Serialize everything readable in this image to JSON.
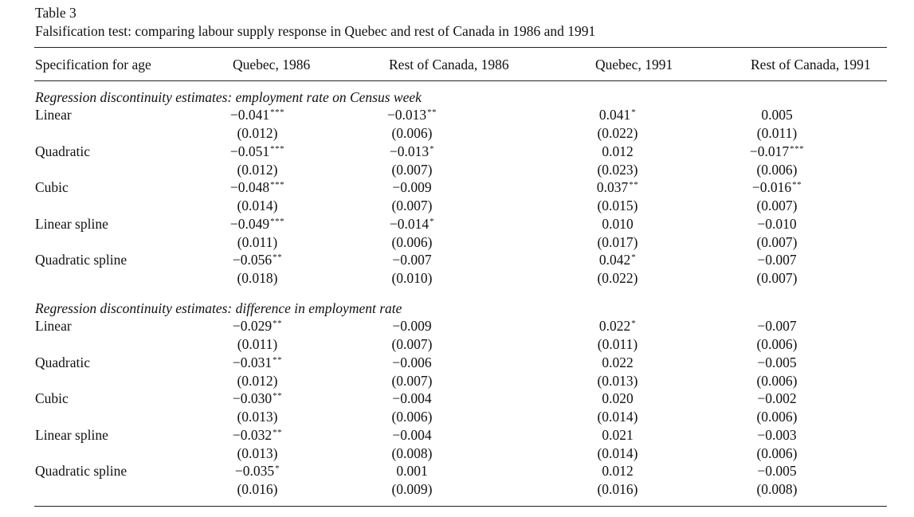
{
  "caption": {
    "label": "Table 3",
    "title": "Falsification test: comparing labour supply response in Quebec and rest of Canada in 1986 and 1991"
  },
  "columns": [
    "Specification for age",
    "Quebec, 1986",
    "Rest of Canada, 1986",
    "Quebec, 1991",
    "Rest of Canada, 1991"
  ],
  "panels": [
    {
      "title": "Regression discontinuity estimates: employment rate on Census week",
      "rows": [
        {
          "label": "Linear",
          "est": [
            "−0.041",
            "−0.013",
            "0.041",
            "0.005"
          ],
          "stars": [
            "***",
            "**",
            "*",
            ""
          ],
          "se": [
            "(0.012)",
            "(0.006)",
            "(0.022)",
            "(0.011)"
          ]
        },
        {
          "label": "Quadratic",
          "est": [
            "−0.051",
            "−0.013",
            "0.012",
            "−0.017"
          ],
          "stars": [
            "***",
            "*",
            "",
            "***"
          ],
          "se": [
            "(0.012)",
            "(0.007)",
            "(0.023)",
            "(0.006)"
          ]
        },
        {
          "label": "Cubic",
          "est": [
            "−0.048",
            "−0.009",
            "0.037",
            "−0.016"
          ],
          "stars": [
            "***",
            "",
            "**",
            "**"
          ],
          "se": [
            "(0.014)",
            "(0.007)",
            "(0.015)",
            "(0.007)"
          ]
        },
        {
          "label": "Linear spline",
          "est": [
            "−0.049",
            "−0.014",
            "0.010",
            "−0.010"
          ],
          "stars": [
            "***",
            "*",
            "",
            ""
          ],
          "se": [
            "(0.011)",
            "(0.006)",
            "(0.017)",
            "(0.007)"
          ]
        },
        {
          "label": "Quadratic spline",
          "est": [
            "−0.056",
            "−0.007",
            "0.042",
            "−0.007"
          ],
          "stars": [
            "**",
            "",
            "*",
            ""
          ],
          "se": [
            "(0.018)",
            "(0.010)",
            "(0.022)",
            "(0.007)"
          ]
        }
      ]
    },
    {
      "title": "Regression discontinuity estimates: difference in employment rate",
      "rows": [
        {
          "label": "Linear",
          "est": [
            "−0.029",
            "−0.009",
            "0.022",
            "−0.007"
          ],
          "stars": [
            "**",
            "",
            "*",
            ""
          ],
          "se": [
            "(0.011)",
            "(0.007)",
            "(0.011)",
            "(0.006)"
          ]
        },
        {
          "label": "Quadratic",
          "est": [
            "−0.031",
            "−0.006",
            "0.022",
            "−0.005"
          ],
          "stars": [
            "**",
            "",
            "",
            ""
          ],
          "se": [
            "(0.012)",
            "(0.007)",
            "(0.013)",
            "(0.006)"
          ]
        },
        {
          "label": "Cubic",
          "est": [
            "−0.030",
            "−0.004",
            "0.020",
            "−0.002"
          ],
          "stars": [
            "**",
            "",
            "",
            ""
          ],
          "se": [
            "(0.013)",
            "(0.006)",
            "(0.014)",
            "(0.006)"
          ]
        },
        {
          "label": "Linear spline",
          "est": [
            "−0.032",
            "−0.004",
            "0.021",
            "−0.003"
          ],
          "stars": [
            "**",
            "",
            "",
            ""
          ],
          "se": [
            "(0.013)",
            "(0.008)",
            "(0.014)",
            "(0.006)"
          ]
        },
        {
          "label": "Quadratic spline",
          "est": [
            "−0.035",
            "0.001",
            "0.012",
            "−0.005"
          ],
          "stars": [
            "*",
            "",
            "",
            ""
          ],
          "se": [
            "(0.016)",
            "(0.009)",
            "(0.016)",
            "(0.008)"
          ]
        }
      ]
    }
  ]
}
